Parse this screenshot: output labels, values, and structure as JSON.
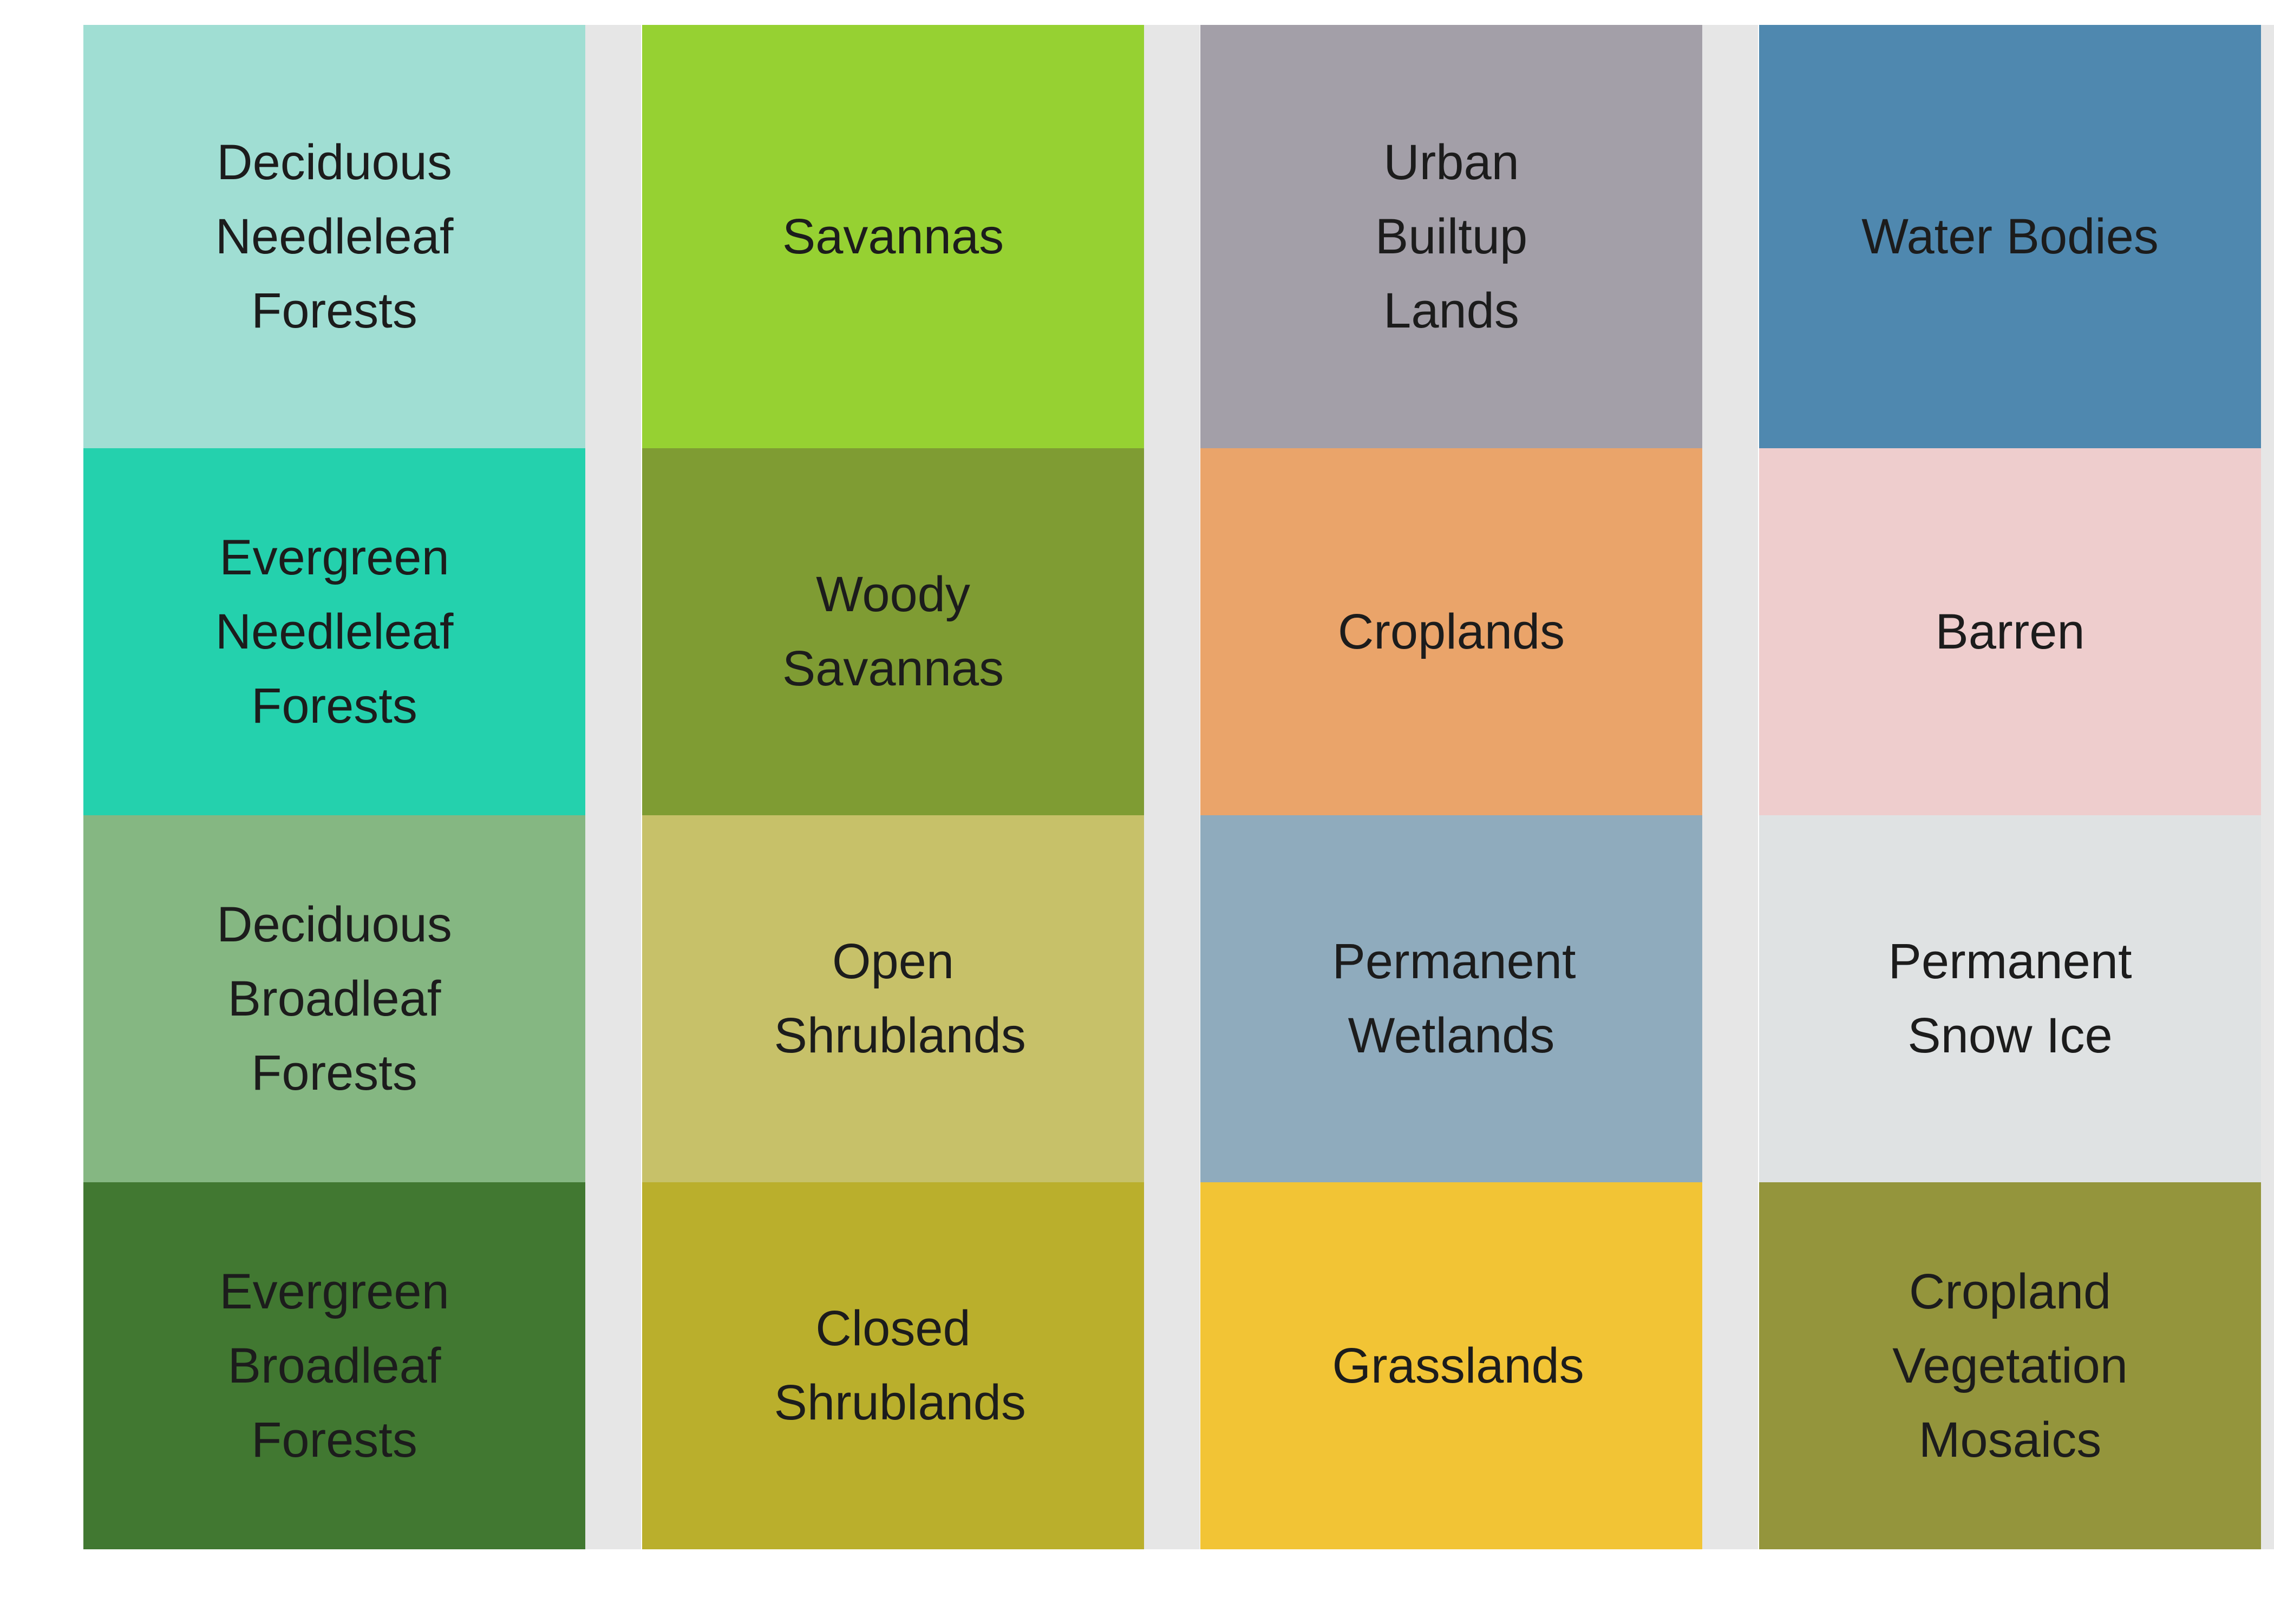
{
  "columns": [
    {
      "cells": [
        {
          "label": "Deciduous Needleleaf Forests",
          "color": "#a0ded3"
        },
        {
          "label": "Evergreen Needleleaf Forests",
          "color": "#24d1ad"
        },
        {
          "label": "Deciduous Broadleaf Forests",
          "color": "#85b782"
        },
        {
          "label": "Evergreen Broadleaf Forests",
          "color": "#417831"
        }
      ]
    },
    {
      "cells": [
        {
          "label": "Savannas",
          "color": "#96d132"
        },
        {
          "label": "Woody Savannas",
          "color": "#7f9c33"
        },
        {
          "label": "Open Shrublands",
          "color": "#c7c169"
        },
        {
          "label": "Closed Shrublands",
          "color": "#baaf2c"
        }
      ]
    },
    {
      "cells": [
        {
          "label": "Urban Builtup Lands",
          "color": "#a39fa8"
        },
        {
          "label": "Croplands",
          "color": "#eaa46a"
        },
        {
          "label": "Permanent Wetlands",
          "color": "#8fabbd"
        },
        {
          "label": "Grasslands",
          "color": "#f2c435"
        }
      ]
    },
    {
      "cells": [
        {
          "label": "Water Bodies",
          "color": "#4f88af"
        },
        {
          "label": "Barren",
          "color": "#eecdcd"
        },
        {
          "label": "Permanent Snow Ice",
          "color": "#dfe2e3"
        },
        {
          "label": "Cropland Vegetation Mosaics",
          "color": "#94953c"
        }
      ]
    }
  ]
}
